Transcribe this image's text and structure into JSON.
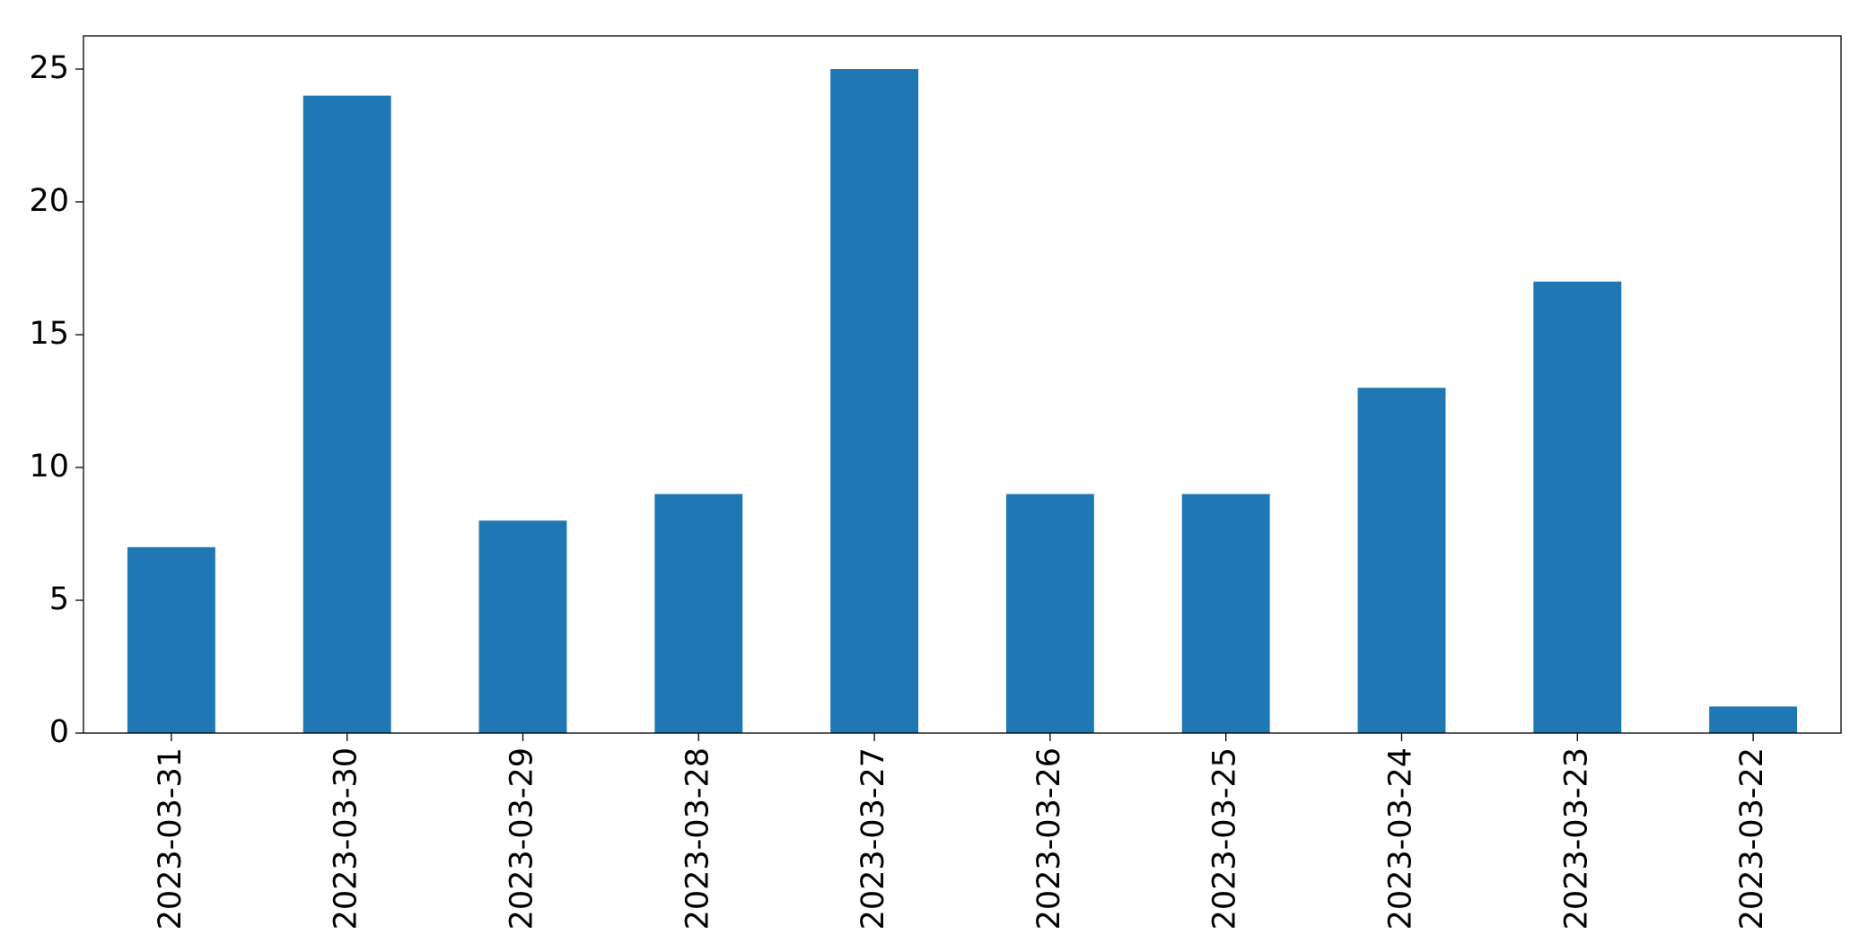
{
  "chart_data": {
    "type": "bar",
    "categories": [
      "2023-03-31",
      "2023-03-30",
      "2023-03-29",
      "2023-03-28",
      "2023-03-27",
      "2023-03-26",
      "2023-03-25",
      "2023-03-24",
      "2023-03-23",
      "2023-03-22"
    ],
    "values": [
      7,
      24,
      8,
      9,
      25,
      9,
      9,
      13,
      17,
      1
    ],
    "color": "#1f77b4",
    "ylim": [
      0,
      26.25
    ],
    "yticks": [
      0,
      5,
      10,
      15,
      20,
      25
    ],
    "grid": false
  }
}
